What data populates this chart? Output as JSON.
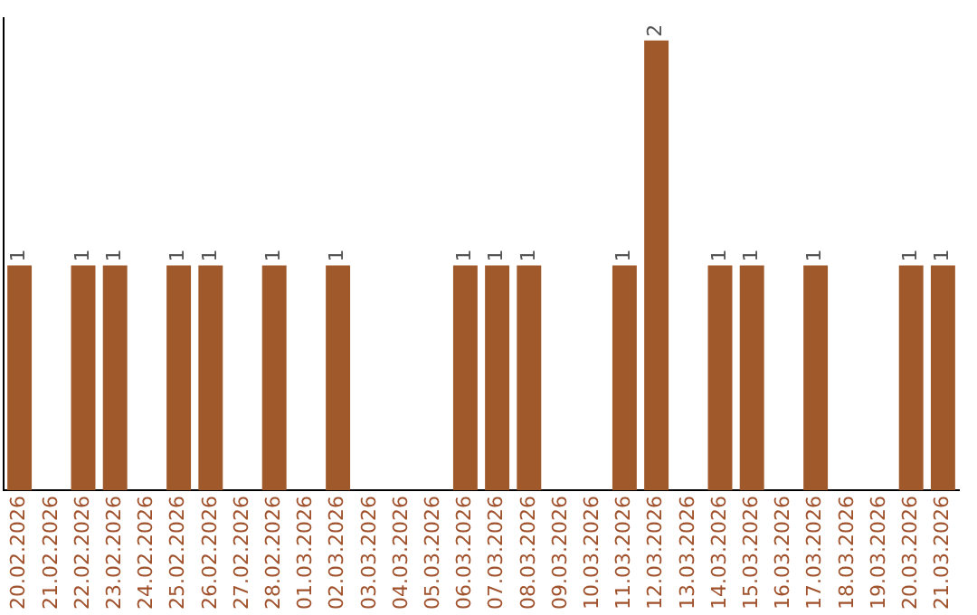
{
  "chart_data": {
    "type": "bar",
    "categories": [
      "20.02.2026",
      "21.02.2026",
      "22.02.2026",
      "23.02.2026",
      "24.02.2026",
      "25.02.2026",
      "26.02.2026",
      "27.02.2026",
      "28.02.2026",
      "01.03.2026",
      "02.03.2026",
      "03.03.2026",
      "04.03.2026",
      "05.03.2026",
      "06.03.2026",
      "07.03.2026",
      "08.03.2026",
      "09.03.2026",
      "10.03.2026",
      "11.03.2026",
      "12.03.2026",
      "13.03.2026",
      "14.03.2026",
      "15.03.2026",
      "16.03.2026",
      "17.03.2026",
      "18.03.2026",
      "19.03.2026",
      "20.03.2026",
      "21.03.2026"
    ],
    "values": [
      1,
      0,
      1,
      1,
      0,
      1,
      1,
      0,
      1,
      0,
      1,
      0,
      0,
      0,
      1,
      1,
      1,
      0,
      0,
      1,
      2,
      0,
      1,
      1,
      0,
      1,
      0,
      0,
      1,
      1
    ],
    "value_labels": [
      "1",
      null,
      "1",
      "1",
      null,
      "1",
      "1",
      null,
      "1",
      null,
      "1",
      null,
      null,
      null,
      "1",
      "1",
      "1",
      null,
      null,
      "1",
      "2",
      null,
      "1",
      "1",
      null,
      "1",
      null,
      null,
      "1",
      "1"
    ],
    "color": "#a0592a",
    "ylim": [
      0,
      2.1
    ],
    "tick_labels": "x",
    "grid": false,
    "legend": false
  }
}
